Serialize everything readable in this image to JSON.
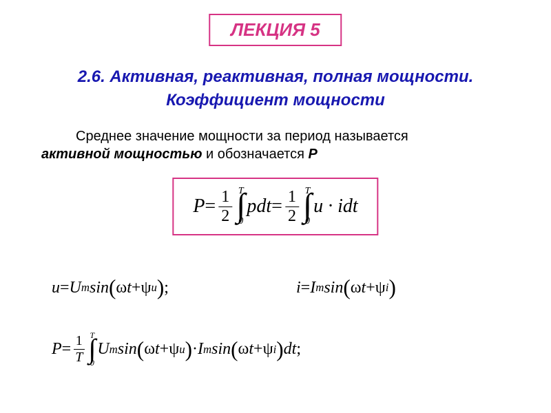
{
  "title_box": {
    "text": "ЛЕКЦИЯ 5",
    "border_color": "#d63384",
    "text_color": "#d63384",
    "font_size": 26
  },
  "subtitle": {
    "line1": "2.6. Активная, реактивная, полная мощности.",
    "line2": "Коэффициент мощности",
    "color": "#1818b0",
    "font_size": 24
  },
  "description": {
    "text_part1": "Среднее значение мощности за период называется",
    "bold_part": "активной мощностью",
    "text_part2": " и обозначается ",
    "bold_part2": "Р",
    "color": "#000000",
    "font_size": 20
  },
  "formula_main": {
    "border_color": "#d63384",
    "parts": {
      "P": "P",
      "eq": " = ",
      "frac_num": "1",
      "frac_den": "2",
      "int_upper": "T",
      "int_lower": "0",
      "pdt": "pdt",
      "uidt": "u · idt"
    }
  },
  "equations": {
    "u": {
      "var": "u",
      "eq": " = ",
      "U": "U",
      "sub_m": "m",
      "sin": " sin",
      "omega": "ω",
      "t": "t",
      "plus": " + ",
      "psi": "ψ",
      "sub_u": "u",
      "end": ";"
    },
    "i": {
      "var": "i",
      "eq": " = ",
      "I": "I",
      "sub_m": "m",
      "sin": " sin",
      "omega": "ω",
      "t": "t",
      "plus": " + ",
      "psi": "ψ",
      "sub_i": "i"
    },
    "p": {
      "P": "P",
      "eq": " = ",
      "frac_num": "1",
      "frac_den": "T",
      "int_upper": "T",
      "int_lower": "0",
      "U": "U",
      "sub_m": "m",
      "sin": " sin",
      "omega": "ω",
      "t": "t",
      "plus": " + ",
      "psi": "ψ",
      "sub_u": "u",
      "dot": " · ",
      "I": "I",
      "sub_i": "i",
      "dt": " dt",
      "end": ";"
    }
  },
  "colors": {
    "background": "#ffffff",
    "text": "#000000",
    "accent": "#d63384",
    "heading": "#1818b0"
  }
}
